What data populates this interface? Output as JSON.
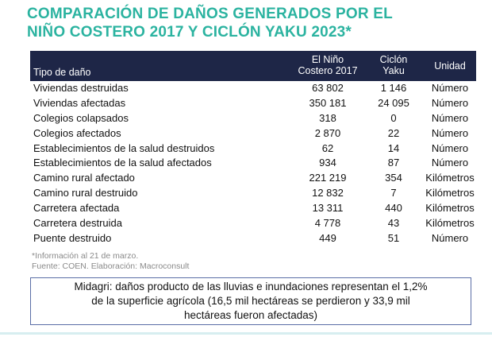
{
  "title": {
    "line1": "COMPARACIÓN DE DAÑOS GENERADOS POR EL",
    "line2": "NIÑO COSTERO 2017 Y CICLÓN YAKU 2023*"
  },
  "table": {
    "headers": {
      "tipo": "Tipo de daño",
      "nino_line1": "El Niño",
      "nino_line2": "Costero 2017",
      "yaku_line1": "Ciclón",
      "yaku_line2": "Yaku",
      "unidad": "Unidad"
    },
    "rows": [
      {
        "tipo": "Viviendas destruidas",
        "nino": "63 802",
        "yaku": "1 146",
        "unidad": "Número"
      },
      {
        "tipo": "Viviendas afectadas",
        "nino": "350 181",
        "yaku": "24 095",
        "unidad": "Número"
      },
      {
        "tipo": "Colegios colapsados",
        "nino": "318",
        "yaku": "0",
        "unidad": "Número"
      },
      {
        "tipo": "Colegios afectados",
        "nino": "2 870",
        "yaku": "22",
        "unidad": "Número"
      },
      {
        "tipo": "Establecimientos de la salud destruidos",
        "nino": "62",
        "yaku": "14",
        "unidad": "Número"
      },
      {
        "tipo": "Establecimientos de la salud afectados",
        "nino": "934",
        "yaku": "87",
        "unidad": "Número"
      },
      {
        "tipo": "Camino rural afectado",
        "nino": "221 219",
        "yaku": "354",
        "unidad": "Kilómetros"
      },
      {
        "tipo": "Camino rural destruido",
        "nino": "12 832",
        "yaku": "7",
        "unidad": "Kilómetros"
      },
      {
        "tipo": "Carretera afectada",
        "nino": "13 311",
        "yaku": "440",
        "unidad": "Kilómetros"
      },
      {
        "tipo": "Carretera destruida",
        "nino": "4 778",
        "yaku": "43",
        "unidad": "Kilómetros"
      },
      {
        "tipo": "Puente destruido",
        "nino": "449",
        "yaku": "51",
        "unidad": "Número"
      }
    ]
  },
  "notes": {
    "info": "*Información al 21 de marzo.",
    "source": "Fuente: COEN. Elaboración: Macroconsult"
  },
  "box": {
    "line1": "Midagri: daños producto de las lluvias e inundaciones representan el 1,2%",
    "line2": "de la superficie agrícola (16,5 mil hectáreas se perdieron y 33,9 mil",
    "line3": "hectáreas fueron afectadas)"
  },
  "colors": {
    "title": "#2bb3a0",
    "header_bg": "#1e2647",
    "box_border": "#5a6ea6"
  }
}
